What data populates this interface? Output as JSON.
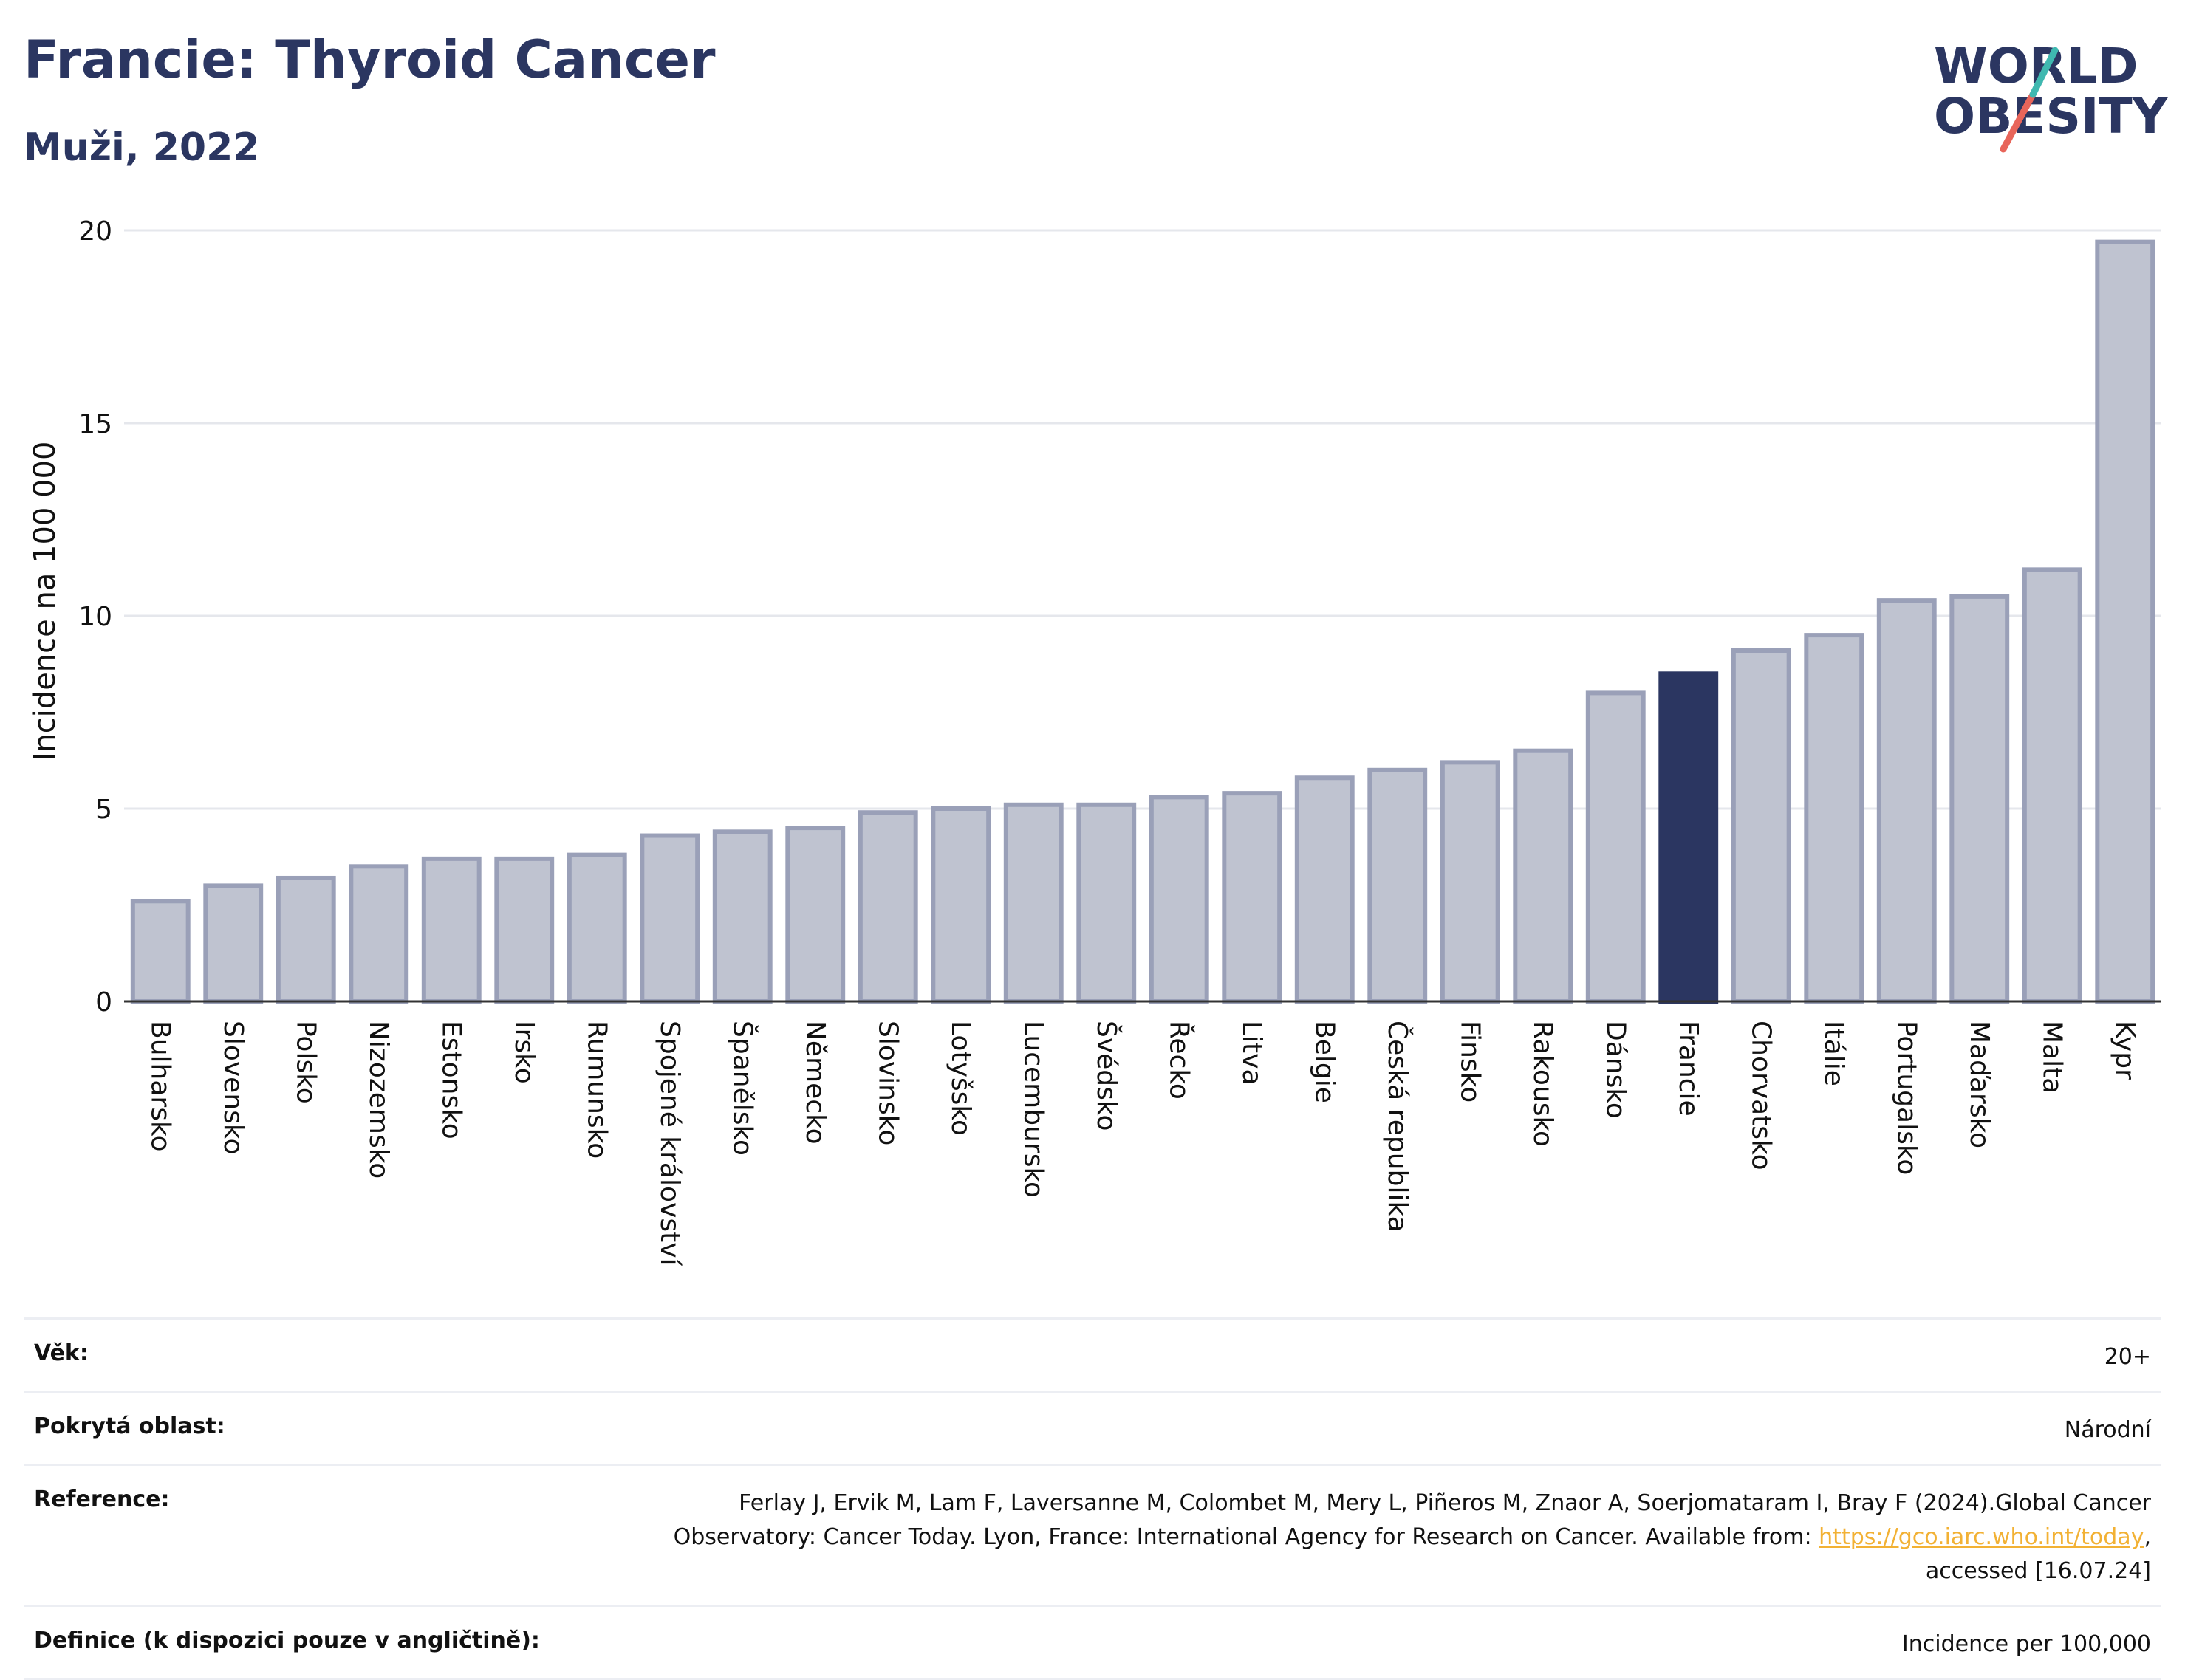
{
  "header": {
    "title": "Francie: Thyroid Cancer",
    "subtitle": "Muži, 2022"
  },
  "logo": {
    "line1": "WORLD",
    "line2": "OBESITY",
    "accent_colors": [
      "#3fb8b0",
      "#e8655a"
    ]
  },
  "colors": {
    "bar": "#bfc3d0",
    "bar_border": "#9aa0b8",
    "highlight": "#2b3661",
    "grid": "#e5e7ec",
    "title": "#2b3661"
  },
  "chart_data": {
    "type": "bar",
    "ylabel": "Incidence na 100 000",
    "ylim": [
      0,
      20
    ],
    "yticks": [
      0,
      5,
      10,
      15,
      20
    ],
    "grid": true,
    "highlight_category": "Francie",
    "categories": [
      "Bulharsko",
      "Slovensko",
      "Polsko",
      "Nizozemsko",
      "Estonsko",
      "Irsko",
      "Rumunsko",
      "Spojené království",
      "Španělsko",
      "Německo",
      "Slovinsko",
      "Lotyšsko",
      "Lucembursko",
      "Švédsko",
      "Řecko",
      "Litva",
      "Belgie",
      "Česká republika",
      "Finsko",
      "Rakousko",
      "Dánsko",
      "Francie",
      "Chorvatsko",
      "Itálie",
      "Portugalsko",
      "Maďarsko",
      "Malta",
      "Kypr"
    ],
    "values": [
      2.6,
      3.0,
      3.2,
      3.5,
      3.7,
      3.7,
      3.8,
      4.3,
      4.4,
      4.5,
      4.9,
      5.0,
      5.1,
      5.1,
      5.3,
      5.4,
      5.8,
      6.0,
      6.2,
      6.5,
      8.0,
      8.5,
      9.1,
      9.5,
      10.4,
      10.5,
      11.2,
      19.7
    ]
  },
  "info": {
    "age_label": "Věk:",
    "age_value": "20+",
    "coverage_label": "Pokrytá oblast:",
    "coverage_value": "Národní",
    "reference_label": "Reference:",
    "reference_line1": "Ferlay J, Ervik M, Lam F, Laversanne M, Colombet M, Mery L, Piñeros M, Znaor A, Soerjomataram I, Bray F (2024).Global Cancer",
    "reference_line2_pre": "Observatory: Cancer Today. Lyon, France: International Agency for Research on Cancer. Available from: ",
    "reference_link": "https://gco.iarc.who.int/today",
    "reference_line2_post": ",",
    "reference_line3": "accessed [16.07.24]",
    "definition_label": "Definice (k dispozici pouze v angličtině):",
    "definition_value": "Incidence per 100,000"
  }
}
